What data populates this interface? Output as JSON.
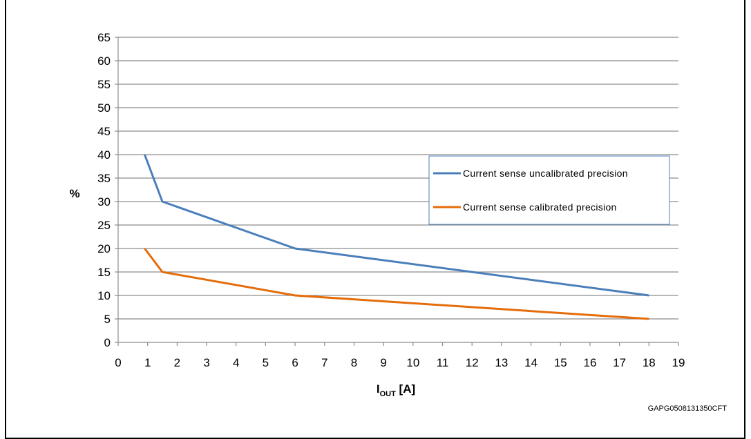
{
  "chart_data": {
    "type": "line",
    "xlabel_main": "I",
    "xlabel_sub": "OUT",
    "xlabel_unit": " [A]",
    "ylabel": "%",
    "xlim": [
      0,
      19
    ],
    "ylim": [
      0,
      65
    ],
    "x_ticks": [
      0,
      1,
      2,
      3,
      4,
      5,
      6,
      7,
      8,
      9,
      10,
      11,
      12,
      13,
      14,
      15,
      16,
      17,
      18,
      19
    ],
    "y_ticks": [
      0,
      5,
      10,
      15,
      20,
      25,
      30,
      35,
      40,
      45,
      50,
      55,
      60,
      65
    ],
    "grid": "horizontal",
    "legend_position": "right",
    "series": [
      {
        "name": "Current sense uncalibrated precision",
        "color": "#4a7ebb",
        "points": [
          [
            0.9,
            40
          ],
          [
            1.5,
            30
          ],
          [
            6,
            20
          ],
          [
            18,
            10
          ]
        ]
      },
      {
        "name": "Current sense calibrated precision",
        "color": "#e46c0a",
        "points": [
          [
            0.9,
            20
          ],
          [
            1.5,
            15
          ],
          [
            6,
            10
          ],
          [
            18,
            5
          ]
        ]
      }
    ],
    "footnote": "GAPG0508131350CFT"
  }
}
